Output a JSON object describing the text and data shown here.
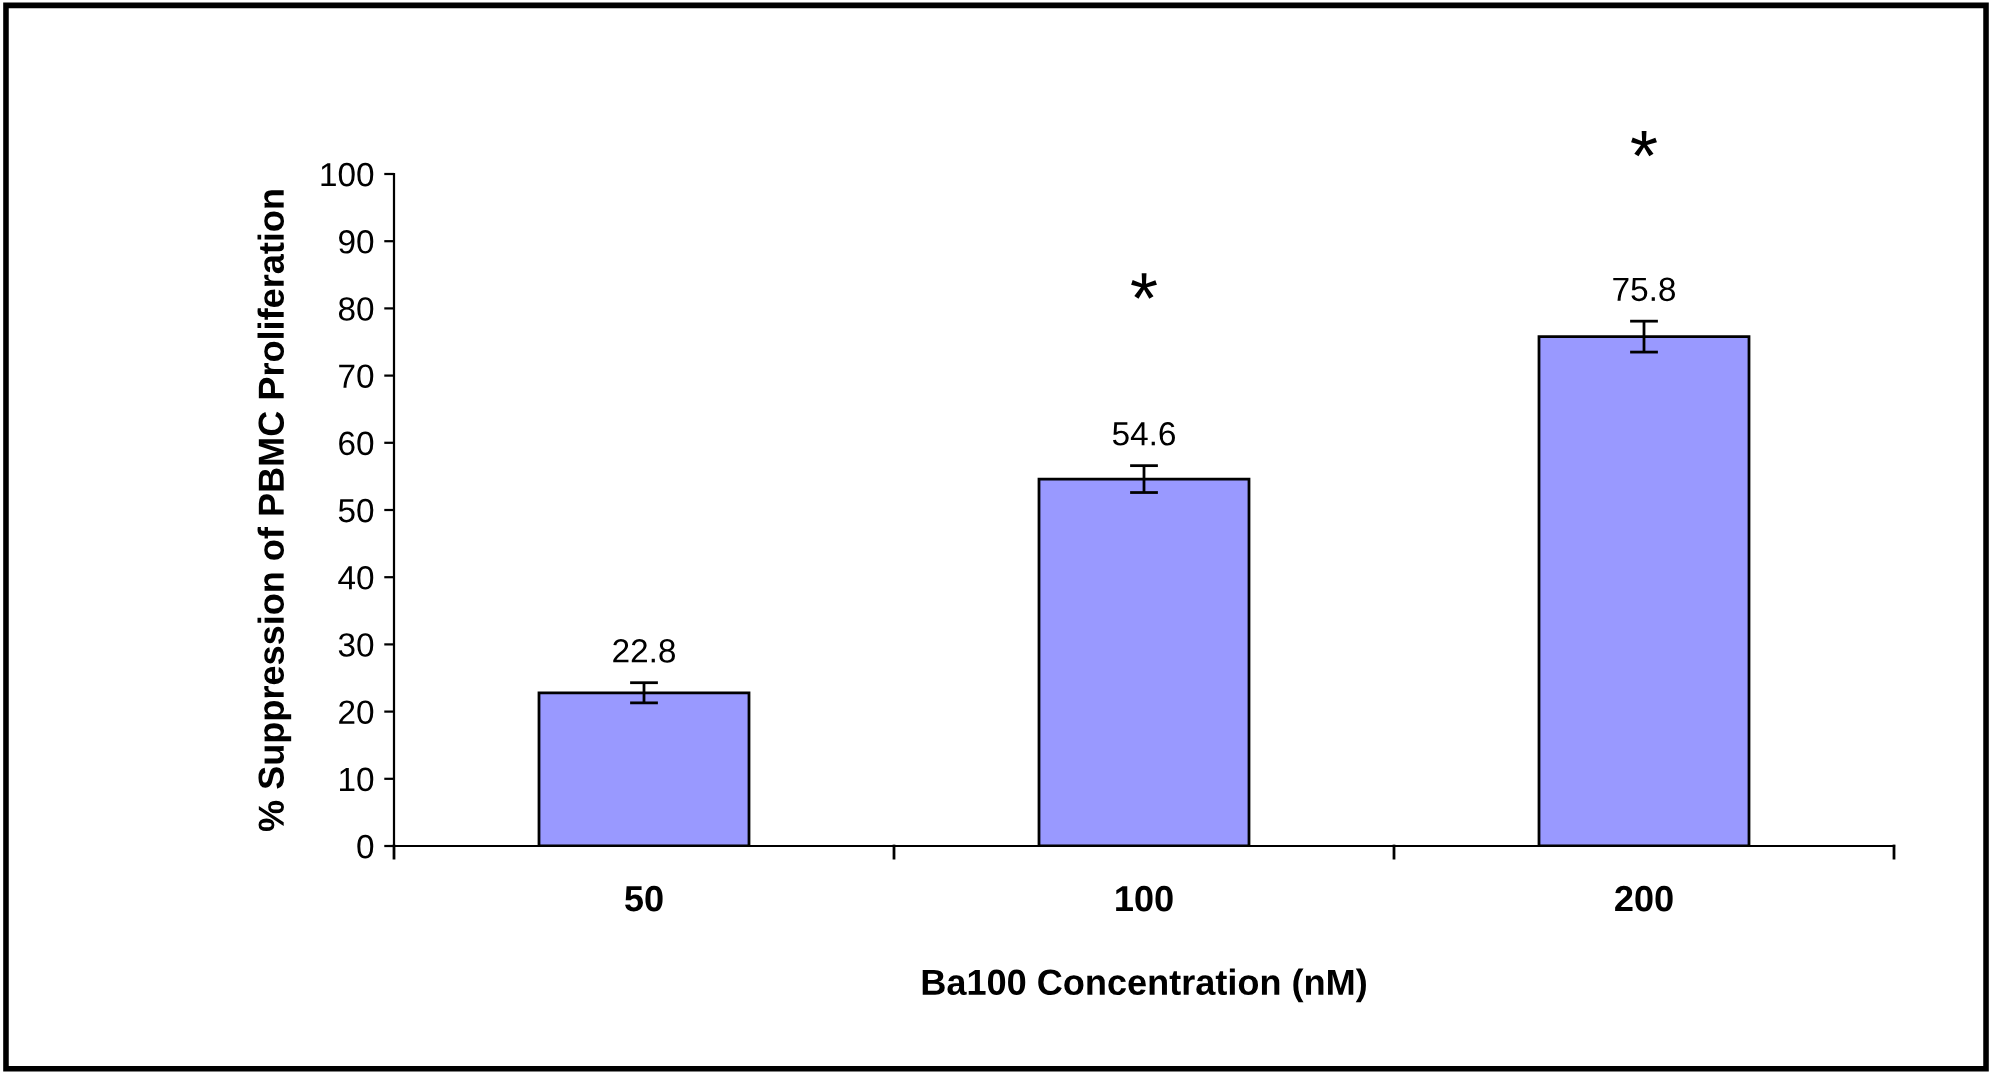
{
  "chart_data": {
    "type": "bar",
    "xlabel": "Ba100 Concentration (nM)",
    "ylabel": "% Suppression of PBMC Proliferation",
    "categories": [
      "50",
      "100",
      "200"
    ],
    "values": [
      22.8,
      54.6,
      75.8
    ],
    "errors": [
      1.5,
      2.0,
      2.3
    ],
    "color": "#9999ff",
    "data_labels": true,
    "ylim": [
      0,
      100
    ],
    "yticks": [
      0,
      10,
      20,
      30,
      40,
      50,
      60,
      70,
      80,
      90,
      100
    ],
    "grid": false,
    "legend": false,
    "annotations": [
      "*",
      "*"
    ]
  }
}
